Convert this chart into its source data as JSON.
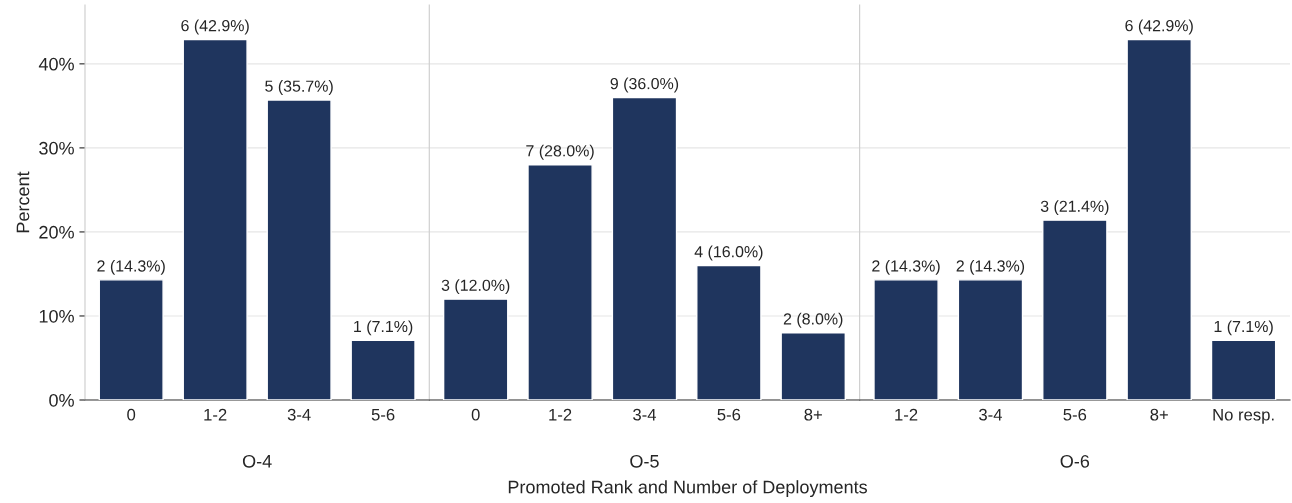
{
  "chart_data": [
    {
      "type": "bar",
      "xlabel": "O-4",
      "ylabel": "Percent",
      "categories": [
        "0",
        "1-2",
        "3-4",
        "5-6"
      ],
      "values": [
        14.3,
        42.9,
        35.7,
        7.1
      ],
      "value_labels": [
        "2 (14.3%)",
        "6 (42.9%)",
        "5 (35.7%)",
        "1 (7.1%)"
      ],
      "color": "#1f355e",
      "ylim": [
        0,
        47
      ],
      "yticks": [
        {
          "value": 0,
          "label": "0%"
        },
        {
          "value": 10,
          "label": "10%"
        },
        {
          "value": 20,
          "label": "20%"
        },
        {
          "value": 30,
          "label": "30%"
        },
        {
          "value": 40,
          "label": "40%"
        }
      ],
      "grid": "y",
      "annotations": [
        "Promoted Rank and Number of Deployments"
      ]
    },
    {
      "type": "bar",
      "xlabel": "O-5",
      "categories": [
        "0",
        "1-2",
        "3-4",
        "5-6",
        "8+"
      ],
      "values": [
        12.0,
        28.0,
        36.0,
        16.0,
        8.0
      ],
      "value_labels": [
        "3 (12.0%)",
        "7 (28.0%)",
        "9 (36.0%)",
        "4 (16.0%)",
        "2 (8.0%)"
      ],
      "color": "#1f355e",
      "ylim": [
        0,
        47
      ],
      "yticks": [
        0,
        10,
        20,
        30,
        40
      ],
      "grid": "y",
      "tick_labels": "x"
    },
    {
      "type": "bar",
      "xlabel": "O-6",
      "categories": [
        "1-2",
        "3-4",
        "5-6",
        "8+",
        "No resp."
      ],
      "values": [
        14.3,
        14.3,
        21.4,
        42.9,
        7.1
      ],
      "value_labels": [
        "2 (14.3%)",
        "2 (14.3%)",
        "3 (21.4%)",
        "6 (42.9%)",
        "1 (7.1%)"
      ],
      "color": "#1f355e",
      "ylim": [
        0,
        47
      ],
      "yticks": [
        0,
        10,
        20,
        30,
        40
      ],
      "grid": "y",
      "tick_labels": "x"
    }
  ]
}
